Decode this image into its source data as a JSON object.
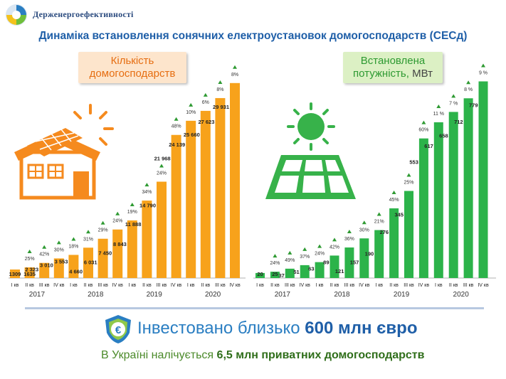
{
  "header": {
    "brand": "Держенергоефективності",
    "title": "Динаміка встановлення сонячних електроустановок домогосподарств (СЕСд)"
  },
  "labels": {
    "households_line1": "Кількість",
    "households_line2": "домогосподарств",
    "power_line1": "Встановлена",
    "power_line2": "потужність,",
    "power_unit": "МВт"
  },
  "footer": {
    "invest_prefix": "Інвестовано близько",
    "invest_highlight": "600 млн євро",
    "households_prefix": "В Україні налічується",
    "households_highlight": "6,5 млн приватних домогосподарств"
  },
  "colors": {
    "orange": "#f7a21b",
    "green": "#2cb34a",
    "title": "#1f5fa8",
    "arrow": "#2e9a32"
  },
  "chart_data": [
    {
      "type": "bar",
      "categories": [
        "I кв",
        "II кв",
        "III кв",
        "IV кв",
        "I кв",
        "II кв",
        "III кв",
        "IV кв",
        "I кв",
        "II кв",
        "III кв",
        "IV кв",
        "I кв",
        "II кв",
        "III кв",
        "IV кв"
      ],
      "years": [
        "2017",
        "2018",
        "2019",
        "2020"
      ],
      "values": [
        1309,
        1635,
        2323,
        3010,
        3553,
        4660,
        6031,
        7450,
        8843,
        11888,
        14790,
        21968,
        24139,
        25660,
        27623,
        29931
      ],
      "value_labels": [
        "1309",
        "1635",
        "2 323",
        "3 010",
        "3 553",
        "4 660",
        "6 031",
        "7 450",
        "8 843",
        "11 888",
        "14 790",
        "21 968",
        "24 139",
        "25 660",
        "27 623",
        "29 931"
      ],
      "growth_labels": [
        "",
        "25%",
        "42%",
        "30%",
        "18%",
        "31%",
        "29%",
        "24%",
        "19%",
        "34%",
        "24%",
        "48%",
        "10%",
        "6%",
        "8%",
        "8%"
      ],
      "ylim": [
        0,
        31000
      ]
    },
    {
      "type": "bar",
      "categories": [
        "I кв",
        "II кв",
        "III кв",
        "IV кв",
        "I кв",
        "II кв",
        "III кв",
        "IV кв",
        "I кв",
        "II кв",
        "III кв",
        "IV кв",
        "I кв",
        "II кв",
        "III кв",
        "IV кв"
      ],
      "years": [
        "2017",
        "2018",
        "2019",
        "2020"
      ],
      "values": [
        20,
        25,
        37,
        51,
        63,
        89,
        121,
        157,
        190,
        276,
        345,
        553,
        617,
        658,
        712,
        779
      ],
      "value_labels": [
        "20",
        "25",
        "37",
        "51",
        "63",
        "89",
        "121",
        "157",
        "190",
        "276",
        "345",
        "553",
        "617",
        "658",
        "712",
        "779"
      ],
      "growth_labels": [
        "",
        "24%",
        "49%",
        "37%",
        "24%",
        "42%",
        "36%",
        "30%",
        "21%",
        "45%",
        "25%",
        "60%",
        "11 %",
        "7 %",
        "8 %",
        "9 %"
      ],
      "ylim": [
        0,
        800
      ]
    }
  ]
}
